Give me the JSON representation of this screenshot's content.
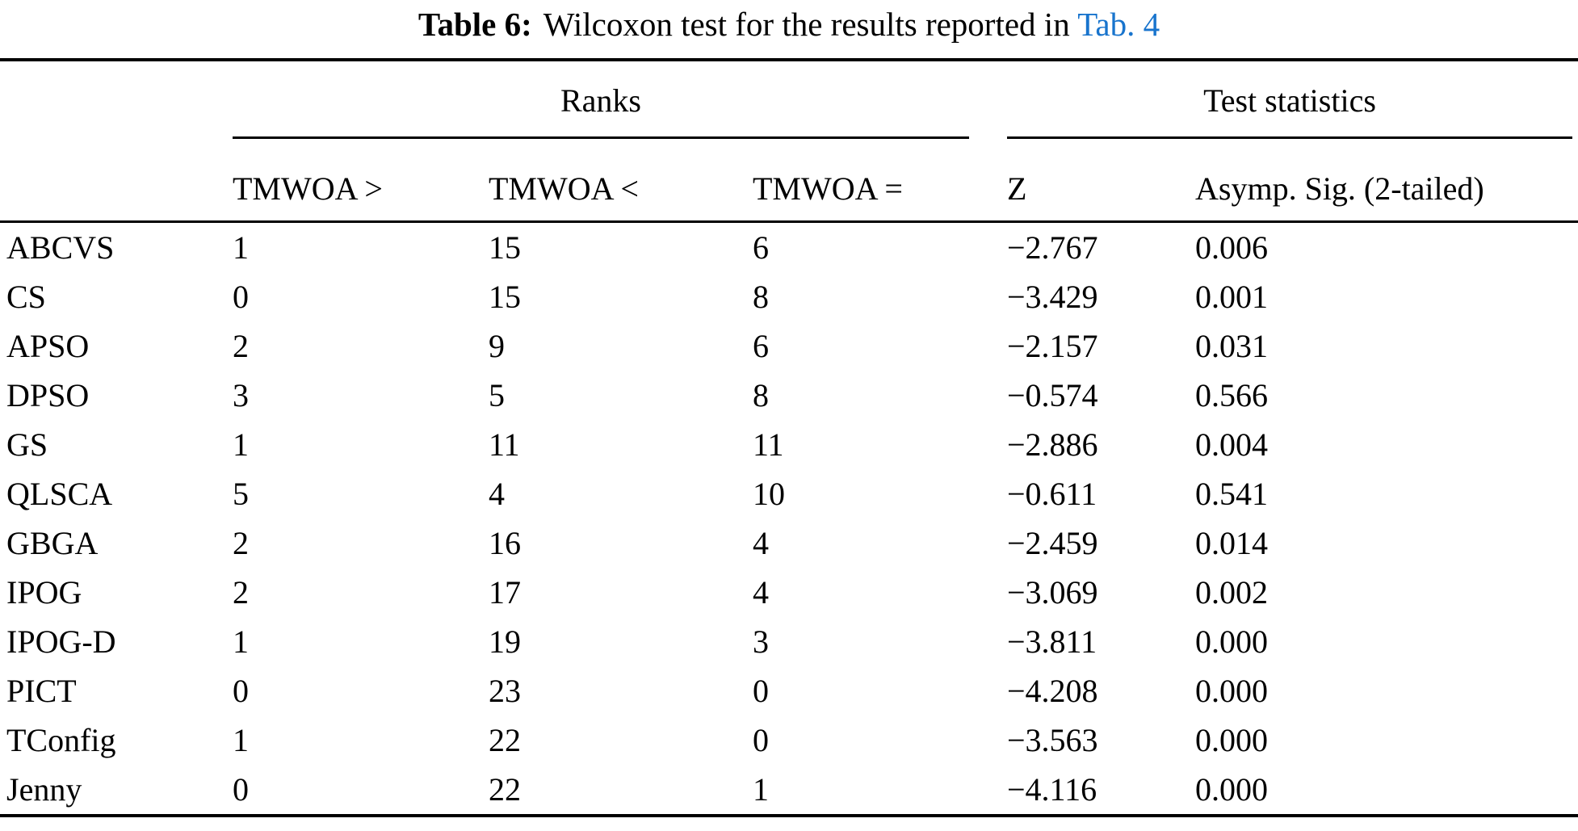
{
  "caption": {
    "label": "Table 6:",
    "text": "Wilcoxon test for the results reported in ",
    "link": "Tab. 4",
    "link_color": "#1874cd"
  },
  "table": {
    "group_headers": {
      "ranks": "Ranks",
      "test_statistics": "Test statistics"
    },
    "column_headers": {
      "algorithm": "",
      "greater": "TMWOA >",
      "less": "TMWOA <",
      "equal": "TMWOA =",
      "z": "Z",
      "sig": "Asymp. Sig. (2-tailed)"
    },
    "rows": [
      {
        "algorithm": "ABCVS",
        "greater": "1",
        "less": "15",
        "equal": "6",
        "z": "−2.767",
        "sig": "0.006"
      },
      {
        "algorithm": "CS",
        "greater": "0",
        "less": "15",
        "equal": "8",
        "z": "−3.429",
        "sig": "0.001"
      },
      {
        "algorithm": "APSO",
        "greater": "2",
        "less": "9",
        "equal": "6",
        "z": "−2.157",
        "sig": "0.031"
      },
      {
        "algorithm": "DPSO",
        "greater": "3",
        "less": "5",
        "equal": "8",
        "z": "−0.574",
        "sig": "0.566"
      },
      {
        "algorithm": "GS",
        "greater": "1",
        "less": "11",
        "equal": "11",
        "z": "−2.886",
        "sig": "0.004"
      },
      {
        "algorithm": "QLSCA",
        "greater": "5",
        "less": "4",
        "equal": "10",
        "z": "−0.611",
        "sig": "0.541"
      },
      {
        "algorithm": "GBGA",
        "greater": "2",
        "less": "16",
        "equal": "4",
        "z": "−2.459",
        "sig": "0.014"
      },
      {
        "algorithm": "IPOG",
        "greater": "2",
        "less": "17",
        "equal": "4",
        "z": "−3.069",
        "sig": "0.002"
      },
      {
        "algorithm": "IPOG-D",
        "greater": "1",
        "less": "19",
        "equal": "3",
        "z": "−3.811",
        "sig": "0.000"
      },
      {
        "algorithm": "PICT",
        "greater": "0",
        "less": "23",
        "equal": "0",
        "z": "−4.208",
        "sig": "0.000"
      },
      {
        "algorithm": "TConfig",
        "greater": "1",
        "less": "22",
        "equal": "0",
        "z": "−3.563",
        "sig": "0.000"
      },
      {
        "algorithm": "Jenny",
        "greater": "0",
        "less": "22",
        "equal": "1",
        "z": "−4.116",
        "sig": "0.000"
      }
    ]
  }
}
